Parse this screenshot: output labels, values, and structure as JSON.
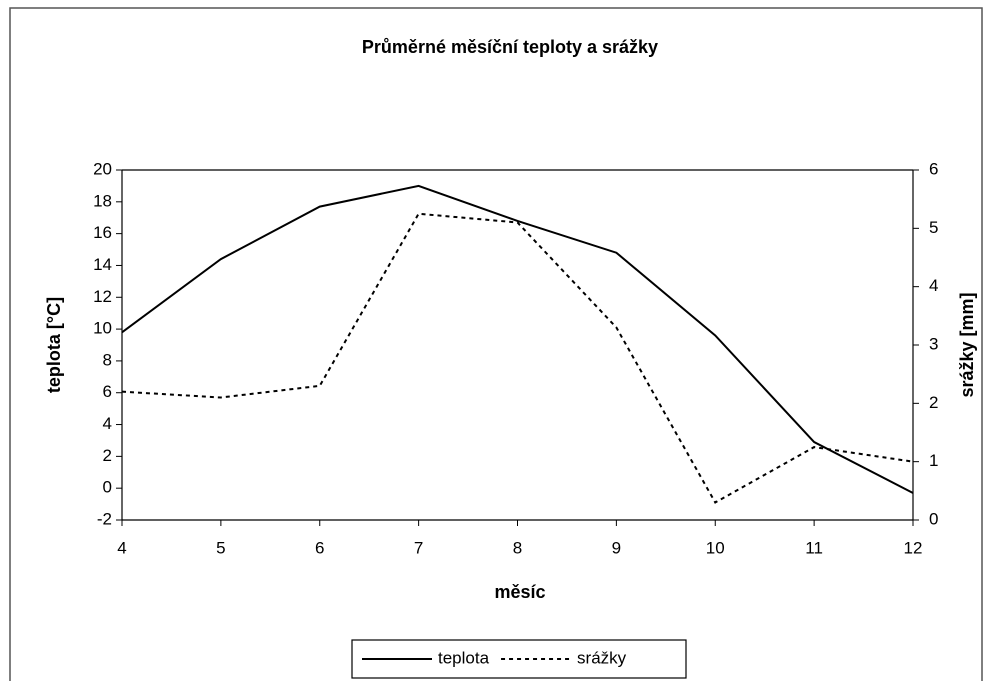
{
  "chart_data": {
    "type": "line",
    "title": "Průměrné měsíční teploty a srážky",
    "x_label": "měsíc",
    "y_label": "teplota [°C]",
    "y2_label": "srážky [mm]",
    "x": [
      4,
      5,
      6,
      7,
      8,
      9,
      10,
      11,
      12
    ],
    "series": [
      {
        "name": "teplota",
        "color": "#000000",
        "line_style": "solid",
        "values": [
          9.8,
          14.4,
          17.7,
          19.0,
          16.8,
          14.8,
          9.6,
          2.9,
          -0.3
        ]
      },
      {
        "name": "srážky",
        "color": "#000000",
        "line_style": "dashed",
        "axis": "y2",
        "values": [
          2.2,
          2.1,
          2.3,
          5.25,
          5.1,
          3.3,
          0.3,
          1.25,
          1.0
        ]
      }
    ],
    "xlim": [
      4,
      12
    ],
    "xticks": [
      4,
      5,
      6,
      7,
      8,
      9,
      10,
      11,
      12
    ],
    "ylim": [
      -2,
      20
    ],
    "yticks": [
      -2,
      0,
      2,
      4,
      6,
      8,
      10,
      12,
      14,
      16,
      18,
      20
    ],
    "y2lim": [
      0,
      6
    ],
    "y2ticks": [
      0,
      1,
      2,
      3,
      4,
      5,
      6
    ],
    "grid": false,
    "legend": "bottom"
  }
}
